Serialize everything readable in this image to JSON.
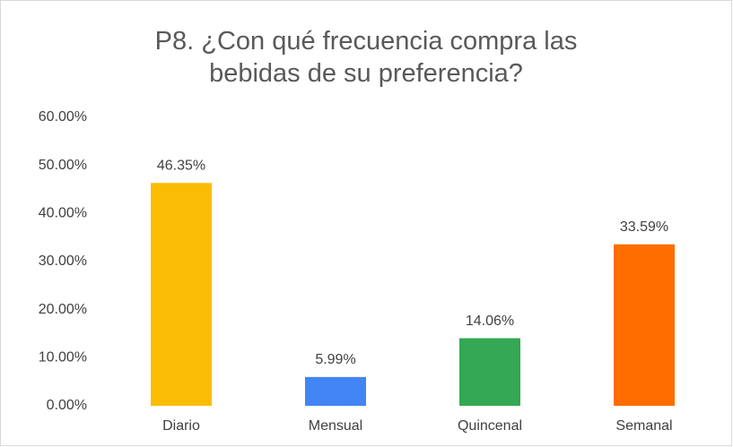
{
  "chart_data": {
    "type": "bar",
    "title": "P8. ¿Con qué frecuencia compra las bebidas de su preferencia?",
    "categories": [
      "Diario",
      "Mensual",
      "Quincenal",
      "Semanal"
    ],
    "values": [
      46.35,
      5.99,
      14.06,
      33.59
    ],
    "value_labels": [
      "46.35%",
      "5.99%",
      "14.06%",
      "33.59%"
    ],
    "colors": [
      "#fbbc04",
      "#4285f4",
      "#34a853",
      "#ff6d01"
    ],
    "ylim": [
      0,
      60
    ],
    "yticks": [
      {
        "value": 0,
        "label": "0.00%"
      },
      {
        "value": 10,
        "label": "10.00%"
      },
      {
        "value": 20,
        "label": "20.00%"
      },
      {
        "value": 30,
        "label": "30.00%"
      },
      {
        "value": 40,
        "label": "40.00%"
      },
      {
        "value": 50,
        "label": "50.00%"
      },
      {
        "value": 60,
        "label": "60.00%"
      }
    ],
    "grid": false
  }
}
